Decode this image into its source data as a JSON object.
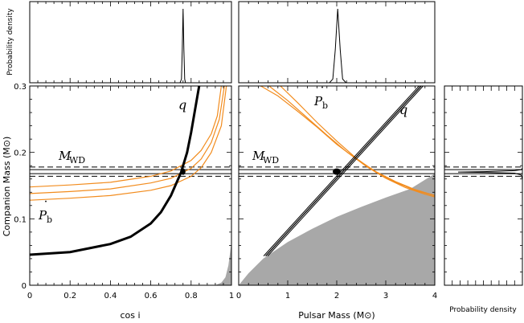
{
  "chart_data": [
    {
      "type": "line",
      "panel": "top-left",
      "ylabel": "Probability density",
      "xlim": [
        0,
        1
      ],
      "x": [
        0.745,
        0.752,
        0.756,
        0.76,
        0.764,
        0.768,
        0.772,
        0.78
      ],
      "y": [
        0.0,
        0.05,
        0.45,
        1.0,
        0.45,
        0.05,
        0.0,
        0.0
      ]
    },
    {
      "type": "line",
      "panel": "top-middle",
      "xlim": [
        0,
        4
      ],
      "x": [
        1.85,
        1.92,
        1.97,
        2.02,
        2.07,
        2.12,
        2.19,
        2.3
      ],
      "y": [
        0.0,
        0.05,
        0.45,
        1.0,
        0.45,
        0.05,
        0.0,
        0.0
      ]
    },
    {
      "type": "line",
      "panel": "main-left",
      "xlabel": "cos i",
      "ylabel": "Companion Mass (M⊙)",
      "xlim": [
        0,
        1
      ],
      "ylim": [
        0,
        0.3
      ],
      "xticks": [
        "0",
        "0.2",
        "0.4",
        "0.6",
        "0.8",
        "1"
      ],
      "yticks": [
        "0",
        "0.1",
        "0.2",
        "0.3"
      ],
      "annotations": {
        "q_label": "q",
        "mwd_label": "M",
        "mwd_sub": "WD",
        "pb_label": "P",
        "pb_sub": "b",
        "pb_dot": "˙"
      },
      "mwd_lines": [
        0.174,
        0.168
      ],
      "mwd_dashed": [
        0.178,
        0.164
      ],
      "series": [
        {
          "name": "q",
          "x": [
            0.0,
            0.2,
            0.4,
            0.5,
            0.6,
            0.65,
            0.7,
            0.75,
            0.78,
            0.8,
            0.82,
            0.84
          ],
          "y": [
            0.046,
            0.05,
            0.062,
            0.073,
            0.093,
            0.11,
            0.135,
            0.17,
            0.2,
            0.23,
            0.265,
            0.3
          ]
        },
        {
          "name": "Pb upper",
          "x": [
            0.0,
            0.2,
            0.4,
            0.6,
            0.7,
            0.8,
            0.85,
            0.9,
            0.93,
            0.95
          ],
          "y": [
            0.148,
            0.151,
            0.155,
            0.164,
            0.172,
            0.188,
            0.203,
            0.228,
            0.255,
            0.3
          ]
        },
        {
          "name": "Pb middle",
          "x": [
            0.0,
            0.2,
            0.4,
            0.6,
            0.7,
            0.8,
            0.85,
            0.9,
            0.94,
            0.965
          ],
          "y": [
            0.138,
            0.141,
            0.145,
            0.154,
            0.161,
            0.176,
            0.19,
            0.215,
            0.25,
            0.3
          ]
        },
        {
          "name": "Pb lower",
          "x": [
            0.0,
            0.2,
            0.4,
            0.6,
            0.7,
            0.8,
            0.85,
            0.9,
            0.95,
            0.975
          ],
          "y": [
            0.128,
            0.131,
            0.135,
            0.143,
            0.15,
            0.164,
            0.177,
            0.2,
            0.24,
            0.3
          ]
        }
      ],
      "excluded_region": {
        "x": [
          0.92,
          0.95,
          0.97,
          0.985,
          1.0,
          1.0
        ],
        "y": [
          0.0,
          0.004,
          0.012,
          0.03,
          0.065,
          0.0
        ]
      },
      "grid": false
    },
    {
      "type": "line",
      "panel": "main-middle",
      "xlabel": "Pulsar Mass (M⊙)",
      "xlim": [
        0,
        4
      ],
      "ylim": [
        0,
        0.3
      ],
      "xticks": [
        "0",
        "1",
        "2",
        "3",
        "4"
      ],
      "annotations": {
        "q_label": "q",
        "mwd_label": "M",
        "mwd_sub": "WD",
        "pb_label": "P",
        "pb_sub": "b",
        "pb_dot": "˙"
      },
      "mwd_lines": [
        0.174,
        0.168
      ],
      "mwd_dashed": [
        0.178,
        0.164
      ],
      "series": [
        {
          "name": "q",
          "x": [
            0.55,
            3.72
          ],
          "y": [
            0.044,
            0.3
          ]
        },
        {
          "name": "Pb 1",
          "x": [
            0.45,
            0.8,
            1.2,
            1.6,
            2.0,
            2.4,
            2.8,
            3.2,
            3.6,
            4.0
          ],
          "y": [
            0.3,
            0.285,
            0.262,
            0.238,
            0.212,
            0.19,
            0.171,
            0.156,
            0.144,
            0.135
          ]
        },
        {
          "name": "Pb 2",
          "x": [
            0.62,
            1.0,
            1.4,
            1.8,
            2.2,
            2.6,
            3.0,
            3.4,
            3.8,
            4.0
          ],
          "y": [
            0.3,
            0.278,
            0.252,
            0.226,
            0.201,
            0.179,
            0.161,
            0.147,
            0.137,
            0.133
          ]
        },
        {
          "name": "Pb 3",
          "x": [
            0.85,
            1.2,
            1.6,
            2.0,
            2.4,
            2.8,
            3.2,
            3.6,
            4.0
          ],
          "y": [
            0.3,
            0.275,
            0.245,
            0.217,
            0.191,
            0.17,
            0.155,
            0.143,
            0.135
          ]
        }
      ],
      "excluded_region": {
        "x": [
          0.0,
          0.2,
          0.5,
          1.0,
          1.5,
          2.0,
          2.5,
          3.0,
          3.5,
          4.0,
          4.0,
          0.0
        ],
        "y": [
          0.0,
          0.018,
          0.04,
          0.065,
          0.085,
          0.103,
          0.118,
          0.132,
          0.145,
          0.168,
          0.0,
          0.0
        ]
      },
      "grid": false
    },
    {
      "type": "line",
      "panel": "right",
      "xlabel": "Probability density",
      "ylim": [
        0,
        0.3
      ],
      "x": [
        0.0,
        0.02,
        0.12,
        0.6,
        1.0,
        0.6,
        0.12,
        0.02,
        0.0
      ],
      "y": [
        0.176,
        0.174,
        0.1725,
        0.171,
        0.1705,
        0.1698,
        0.1687,
        0.166,
        0.16
      ]
    }
  ]
}
